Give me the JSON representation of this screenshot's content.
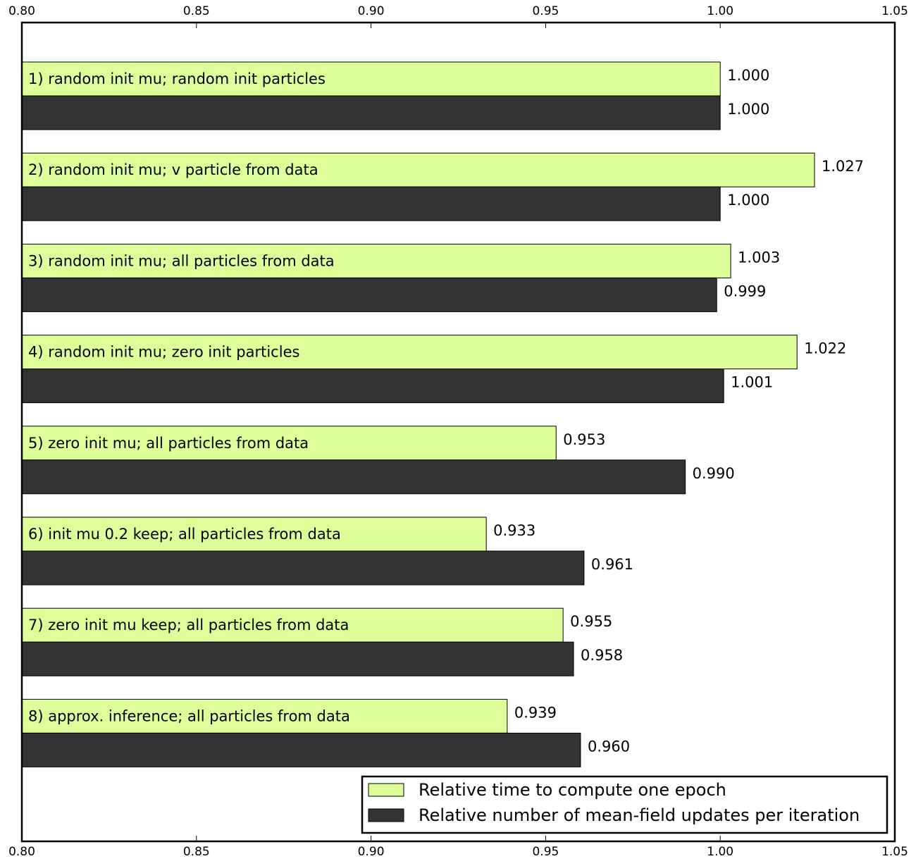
{
  "chart_data": {
    "type": "bar",
    "orientation": "horizontal",
    "title": "",
    "xlabel": "",
    "ylabel": "",
    "xlim": [
      0.8,
      1.05
    ],
    "xticks": [
      "0.80",
      "0.85",
      "0.90",
      "0.95",
      "1.00",
      "1.05"
    ],
    "categories": [
      "1) random init mu; random init particles",
      "2) random init mu; v particle from data",
      "3) random init mu; all particles from data",
      "4) random init mu; zero init particles",
      "5) zero init mu; all particles from data",
      "6) init mu 0.2 keep; all particles from data",
      "7) zero init mu keep; all particles from data",
      "8) approx. inference; all particles from data"
    ],
    "series": [
      {
        "name": "Relative time to compute one epoch",
        "color": "#ddff99",
        "values": [
          1.0,
          1.027,
          1.003,
          1.022,
          0.953,
          0.933,
          0.955,
          0.939
        ],
        "labels": [
          "1.000",
          "1.027",
          "1.003",
          "1.022",
          "0.953",
          "0.933",
          "0.955",
          "0.939"
        ]
      },
      {
        "name": "Relative number of mean-field updates per iteration",
        "color": "#333333",
        "values": [
          1.0,
          1.0,
          0.999,
          1.001,
          0.99,
          0.961,
          0.958,
          0.96
        ],
        "labels": [
          "1.000",
          "1.000",
          "0.999",
          "1.001",
          "0.990",
          "0.961",
          "0.958",
          "0.960"
        ]
      }
    ],
    "grid": false,
    "legend_position": "bottom-right"
  }
}
